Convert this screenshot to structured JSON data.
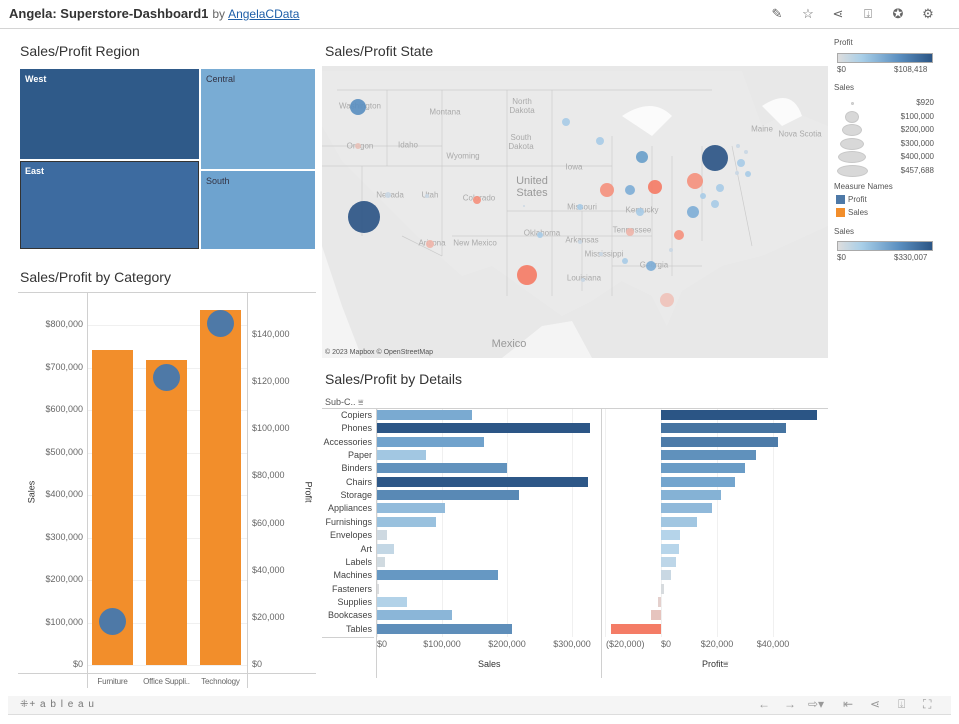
{
  "header": {
    "title": "Angela: Superstore-Dashboard1",
    "by": "by",
    "author": "AngelaCData",
    "icons": [
      "edit-icon",
      "star-icon",
      "share-icon",
      "download-icon",
      "badge-icon",
      "settings-icon"
    ]
  },
  "region": {
    "title": "Sales/Profit Region",
    "cells": [
      {
        "label": "West",
        "color": "#2f5a89"
      },
      {
        "label": "East",
        "color": "#3d6ba0"
      },
      {
        "label": "Central",
        "color": "#79acd4"
      },
      {
        "label": "South",
        "color": "#6ea3cf"
      }
    ]
  },
  "category": {
    "title": "Sales/Profit by Category",
    "chart_data": {
      "type": "bar",
      "categories": [
        "Furniture",
        "Office Suppli..",
        "Technology"
      ],
      "series": [
        {
          "name": "Sales",
          "values": [
            741000,
            718000,
            836000
          ],
          "color": "#f28e2b"
        },
        {
          "name": "Profit",
          "values": [
            18500,
            122000,
            145000
          ],
          "color": "#4e79a7",
          "mark": "circle"
        }
      ],
      "ylabel": "Sales",
      "y2label": "Profit",
      "ylim": [
        0,
        860000
      ],
      "y2lim": [
        0,
        153000
      ],
      "yticks": [
        "$0",
        "$100,000",
        "$200,000",
        "$300,000",
        "$400,000",
        "$500,000",
        "$600,000",
        "$700,000",
        "$800,000"
      ],
      "y2ticks": [
        "$0",
        "$20,000",
        "$40,000",
        "$60,000",
        "$80,000",
        "$100,000",
        "$120,000",
        "$140,000"
      ]
    }
  },
  "map": {
    "title": "Sales/Profit State",
    "attribution": "© 2023 Mapbox  © OpenStreetMap",
    "labels": [
      "North Dakota",
      "South Dakota",
      "Montana",
      "Wyoming",
      "Iowa",
      "United States",
      "New Mexico",
      "Mexico",
      "Nova Scotia",
      "Maine",
      "Nevada",
      "Colorado",
      "Oklahoma",
      "Missouri",
      "Kentucky",
      "Tennessee",
      "Georgia",
      "Mississippi",
      "Louisiana",
      "Arkansas",
      "Idaho",
      "Utah",
      "Oregon",
      "Washington",
      "Arizona"
    ]
  },
  "details": {
    "title": "Sales/Profit by Details",
    "header": "Sub-C..",
    "chart_data": {
      "type": "bar",
      "categories": [
        "Copiers",
        "Phones",
        "Accessories",
        "Paper",
        "Binders",
        "Chairs",
        "Storage",
        "Appliances",
        "Furnishings",
        "Envelopes",
        "Art",
        "Labels",
        "Machines",
        "Fasteners",
        "Supplies",
        "Bookcases",
        "Tables"
      ],
      "series": [
        {
          "name": "Sales",
          "values": [
            146000,
            327000,
            164000,
            75000,
            200000,
            325000,
            218000,
            104000,
            90000,
            15000,
            26000,
            12000,
            186000,
            3000,
            46000,
            115000,
            207000
          ]
        },
        {
          "name": "Profit",
          "values": [
            55600,
            44500,
            41900,
            34000,
            30000,
            26600,
            21300,
            18100,
            13000,
            6900,
            6500,
            5500,
            3400,
            900,
            -1200,
            -3500,
            -17700
          ]
        }
      ],
      "sales_ticks": [
        "$0",
        "$100,000",
        "$200,000",
        "$300,000"
      ],
      "profit_ticks": [
        "($20,000)",
        "$0",
        "$20,000",
        "$40,000"
      ],
      "xlabel_sales": "Sales",
      "xlabel_profit": "Profit",
      "sales_lim": [
        0,
        340000
      ],
      "profit_lim": [
        -22000,
        58000
      ]
    }
  },
  "legend": {
    "profit_title": "Profit",
    "profit_min": "$0",
    "profit_max": "$108,418",
    "sales_size_title": "Sales",
    "sizes": [
      "$920",
      "$100,000",
      "$200,000",
      "$300,000",
      "$400,000",
      "$457,688"
    ],
    "measure_title": "Measure Names",
    "measures": [
      {
        "label": "Profit",
        "color": "#4e79a7"
      },
      {
        "label": "Sales",
        "color": "#f28e2b"
      }
    ],
    "sales_title": "Sales",
    "sales_min": "$0",
    "sales_max": "$330,007"
  },
  "footer": {
    "logo": "+ a b l e a u",
    "icons": [
      "undo-icon",
      "redo-icon",
      "revert-icon",
      "reset-icon",
      "share-icon",
      "download-icon",
      "fullscreen-icon"
    ]
  }
}
